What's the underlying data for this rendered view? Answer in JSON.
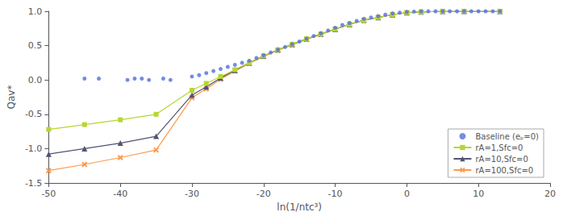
{
  "chart_data": {
    "type": "line",
    "x_label": "ln(1/ntc³)",
    "y_label": "Qav*",
    "xlim": [
      -50,
      20
    ],
    "ylim": [
      -1.5,
      1.0
    ],
    "xticks": [
      -50,
      -40,
      -30,
      -20,
      -10,
      0,
      10,
      20
    ],
    "yticks": [
      -1.5,
      {
        "value": -1.0,
        "label": "-1.0"
      },
      -0.5,
      {
        "value": 0,
        "label": "0.0"
      },
      0.5,
      {
        "value": 1.0,
        "label": "1.0"
      }
    ],
    "grid": false,
    "legend": "lower right",
    "series": [
      {
        "name": "Baseline (eₚ=0)",
        "type": "scatter",
        "marker": "circle",
        "line_style": "none",
        "x": [
          -45,
          -43,
          -39,
          -38,
          -37,
          -36,
          -34,
          -33,
          -30,
          -29,
          -28,
          -27,
          -26,
          -25,
          -24,
          -23,
          -22,
          -21,
          -20,
          -19,
          -18,
          -17,
          -16,
          -15,
          -14,
          -13,
          -12,
          -11,
          -10,
          -9,
          -8,
          -7,
          -6,
          -5,
          -4,
          -3,
          -2,
          -1,
          0,
          1,
          2,
          3,
          4,
          5,
          6,
          7,
          8,
          9,
          10,
          11,
          12,
          13
        ],
        "values": [
          0.02,
          0.02,
          0.0,
          0.02,
          0.02,
          0.0,
          0.02,
          0.0,
          0.05,
          0.07,
          0.1,
          0.13,
          0.16,
          0.19,
          0.22,
          0.25,
          0.28,
          0.32,
          0.36,
          0.4,
          0.44,
          0.48,
          0.52,
          0.56,
          0.6,
          0.64,
          0.68,
          0.72,
          0.76,
          0.8,
          0.83,
          0.86,
          0.89,
          0.91,
          0.93,
          0.95,
          0.97,
          0.98,
          0.99,
          0.995,
          1.0,
          1.0,
          1.0,
          1.0,
          1.0,
          1.0,
          1.0,
          1.0,
          1.0,
          1.0,
          1.0,
          1.0
        ]
      },
      {
        "name": "rA=1,Sfc=0",
        "type": "line",
        "marker": "square",
        "line_style": "solid",
        "x": [
          -50,
          -45,
          -40,
          -35,
          -30,
          -28,
          -26,
          -24,
          -22,
          -20,
          -18,
          -16,
          -14,
          -12,
          -10,
          -8,
          -6,
          -4,
          -2,
          0,
          2,
          5,
          8,
          13
        ],
        "values": [
          -0.72,
          -0.65,
          -0.58,
          -0.5,
          -0.15,
          -0.05,
          0.05,
          0.15,
          0.25,
          0.35,
          0.44,
          0.52,
          0.6,
          0.67,
          0.74,
          0.81,
          0.87,
          0.91,
          0.95,
          0.98,
          0.99,
          1.0,
          1.0,
          1.0
        ]
      },
      {
        "name": "rA=10,Sfc=0",
        "type": "line",
        "marker": "triangle",
        "line_style": "solid",
        "x": [
          -50,
          -45,
          -40,
          -35,
          -30,
          -28,
          -26,
          -24,
          -22,
          -20,
          -18,
          -16,
          -14,
          -12,
          -10,
          -8,
          -6,
          -4,
          -2,
          0,
          2,
          5,
          8,
          13
        ],
        "values": [
          -1.08,
          -1.0,
          -0.92,
          -0.82,
          -0.22,
          -0.1,
          0.03,
          0.14,
          0.25,
          0.35,
          0.44,
          0.52,
          0.6,
          0.67,
          0.74,
          0.81,
          0.87,
          0.91,
          0.95,
          0.98,
          0.99,
          1.0,
          1.0,
          1.0
        ]
      },
      {
        "name": "rA=100,Sfc=0",
        "type": "line",
        "marker": "x",
        "line_style": "solid",
        "x": [
          -50,
          -45,
          -40,
          -35,
          -30,
          -28,
          -26,
          -24,
          -22,
          -20,
          -18,
          -16,
          -14,
          -12,
          -10,
          -8,
          -6,
          -4,
          -2,
          0,
          2,
          5,
          8,
          13
        ],
        "values": [
          -1.32,
          -1.23,
          -1.13,
          -1.02,
          -0.26,
          -0.13,
          0.01,
          0.13,
          0.24,
          0.34,
          0.43,
          0.51,
          0.59,
          0.66,
          0.74,
          0.81,
          0.87,
          0.91,
          0.95,
          0.98,
          0.99,
          1.0,
          1.0,
          1.0
        ]
      }
    ]
  }
}
